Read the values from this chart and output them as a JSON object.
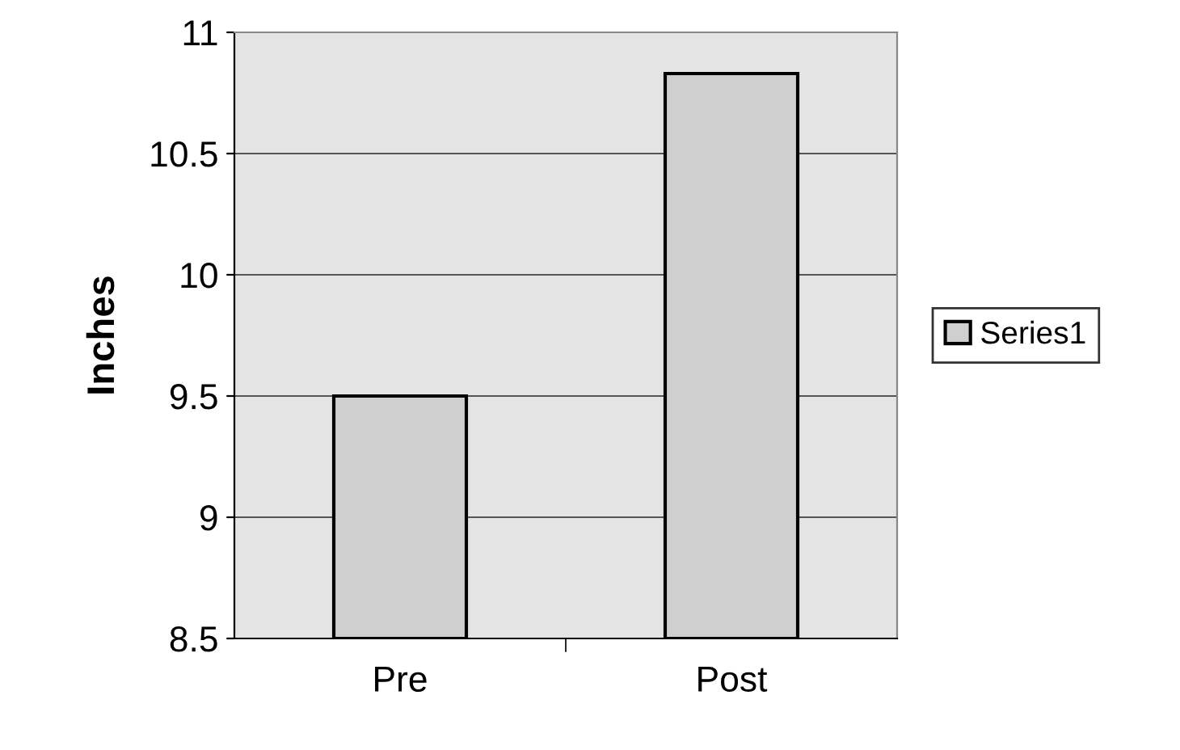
{
  "chart_data": {
    "type": "bar",
    "ylabel": "Inches",
    "categories": [
      "Pre",
      "Post"
    ],
    "series": [
      {
        "name": "Series1",
        "color": "#cfcfcf",
        "values": [
          9.5,
          10.83
        ]
      }
    ],
    "ylim": [
      8.5,
      11
    ],
    "yticks": [
      8.5,
      9,
      9.5,
      10,
      10.5,
      11
    ],
    "grid": "y",
    "legend": "right"
  }
}
